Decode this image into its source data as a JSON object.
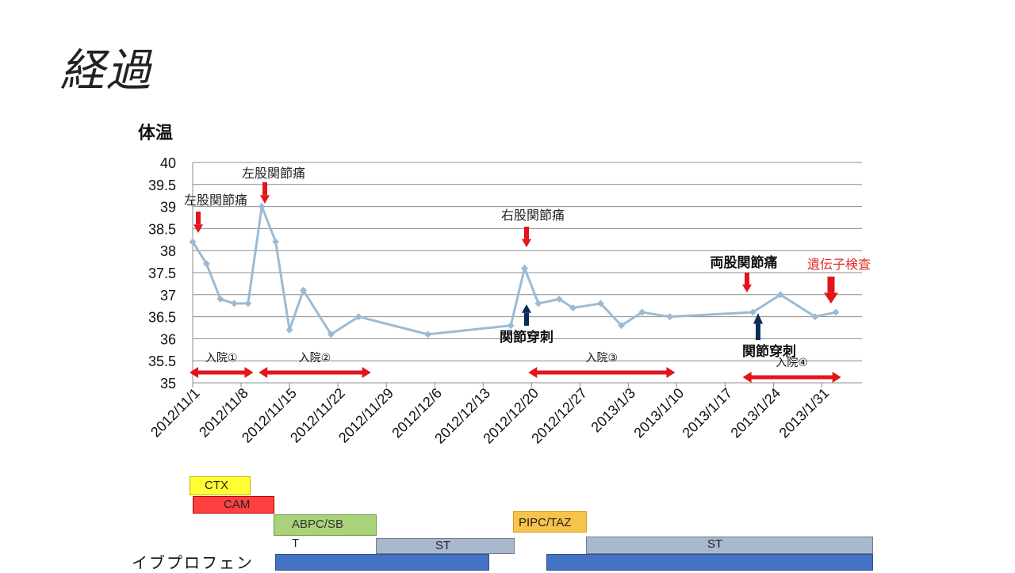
{
  "slide": {
    "title": "経過"
  },
  "chart_data": {
    "type": "line",
    "title": "体温",
    "ylim": [
      35,
      40
    ],
    "yticks": [
      "35",
      "35.5",
      "36",
      "36.5",
      "37",
      "37.5",
      "38",
      "38.5",
      "39",
      "39.5",
      "40"
    ],
    "xlim_days": [
      0,
      96
    ],
    "xtick_labels": [
      "2012/11/1",
      "2012/11/8",
      "2012/11/15",
      "2012/11/22",
      "2012/11/29",
      "2012/12/6",
      "2012/12/13",
      "2012/12/20",
      "2012/12/27",
      "2013/1/3",
      "2013/1/10",
      "2013/1/17",
      "2013/1/24",
      "2013/1/31"
    ],
    "grid": true,
    "series": [
      {
        "color": "#9bbbd4",
        "points": [
          {
            "x": "2012/11/1",
            "y": 38.2
          },
          {
            "x": "2012/11/3",
            "y": 37.7
          },
          {
            "x": "2012/11/5",
            "y": 36.9
          },
          {
            "x": "2012/11/7",
            "y": 36.8
          },
          {
            "x": "2012/11/9",
            "y": 36.8
          },
          {
            "x": "2012/11/11",
            "y": 39.0
          },
          {
            "x": "2012/11/13",
            "y": 38.2
          },
          {
            "x": "2012/11/15",
            "y": 36.2
          },
          {
            "x": "2012/11/17",
            "y": 37.1
          },
          {
            "x": "2012/11/21",
            "y": 36.1
          },
          {
            "x": "2012/11/25",
            "y": 36.5
          },
          {
            "x": "2012/12/5",
            "y": 36.1
          },
          {
            "x": "2012/12/17",
            "y": 36.3
          },
          {
            "x": "2012/12/19",
            "y": 37.6
          },
          {
            "x": "2012/12/21",
            "y": 36.8
          },
          {
            "x": "2012/12/24",
            "y": 36.9
          },
          {
            "x": "2012/12/26",
            "y": 36.7
          },
          {
            "x": "2012/12/30",
            "y": 36.8
          },
          {
            "x": "2013/1/2",
            "y": 36.3
          },
          {
            "x": "2013/1/5",
            "y": 36.6
          },
          {
            "x": "2013/1/9",
            "y": 36.5
          },
          {
            "x": "2013/1/21",
            "y": 36.6
          },
          {
            "x": "2013/1/25",
            "y": 37.0
          },
          {
            "x": "2013/1/30",
            "y": 36.5
          },
          {
            "x": "2013/2/2",
            "y": 36.6
          }
        ]
      }
    ],
    "annotations": [
      {
        "text": "左股関節痛",
        "x": "2012/11/1",
        "color": "#d00000",
        "bold": false,
        "arrow": "down-red",
        "text_color": "#222222"
      },
      {
        "text": "左股関節痛",
        "x": "2012/11/11",
        "color": "#d00000",
        "bold": false,
        "arrow": "down-red",
        "text_color": "#222222"
      },
      {
        "text": "右股関節痛",
        "x": "2012/12/19",
        "color": "#d00000",
        "bold": false,
        "arrow": "down-red",
        "text_color": "#222222"
      },
      {
        "text": "両股関節痛",
        "x": "2013/1/20",
        "color": "#d00000",
        "bold": true,
        "arrow": "down-red",
        "text_color": "#111111"
      },
      {
        "text": "遺伝子検査",
        "x": "2013/2/1",
        "color": "#d00000",
        "bold": false,
        "arrow": "down-red-big",
        "text_color": "#e0302a"
      },
      {
        "text": "関節穿刺",
        "x": "2012/12/19",
        "color": "#0b2a5b",
        "bold": true,
        "arrow": "up-navy",
        "text_color": "#111111"
      },
      {
        "text": "関節穿刺",
        "x": "2013/1/21",
        "color": "#0b2a5b",
        "bold": true,
        "arrow": "up-navy",
        "text_color": "#111111"
      }
    ],
    "admissions": [
      {
        "label": "入院①",
        "start": "2012/11/1",
        "end": "2012/11/10"
      },
      {
        "label": "入院②",
        "start": "2012/11/11",
        "end": "2012/11/27"
      },
      {
        "label": "入院③",
        "start": "2012/12/20",
        "end": "2013/1/10"
      },
      {
        "label": "入院④",
        "start": "2013/1/20",
        "end": "2013/2/3"
      }
    ]
  },
  "medications": {
    "ctx": {
      "label": "CTX",
      "color": "#ffff33"
    },
    "cam": {
      "label": "CAM",
      "color": "#ff4040"
    },
    "abpc": {
      "label": "ABPC/SB",
      "color": "#a9d27a"
    },
    "abpc_t": {
      "label": "T"
    },
    "st1": {
      "label": "ST",
      "color": "#a9b8cc"
    },
    "pipc": {
      "label": "PIPC/TAZ",
      "color": "#f8c34c"
    },
    "st2": {
      "label": "ST",
      "color": "#a9b8cc"
    },
    "ibuprofen": {
      "label": "イブプロフェン",
      "color": "#4472c4"
    }
  }
}
